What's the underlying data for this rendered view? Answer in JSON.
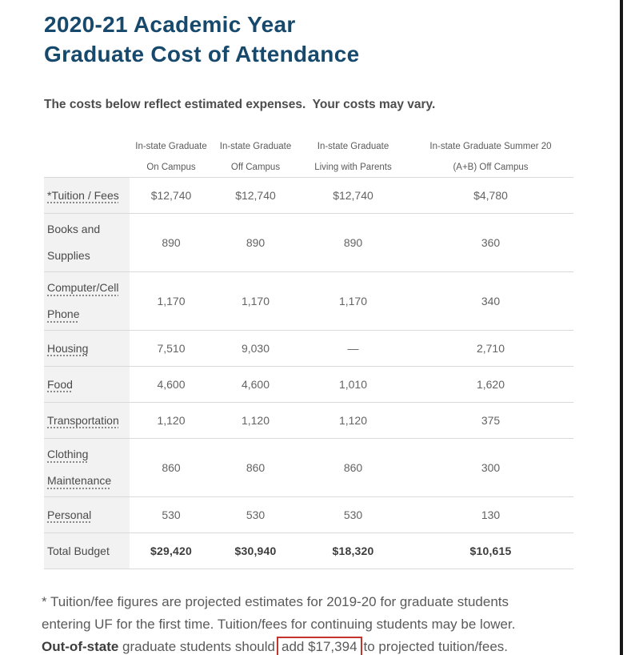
{
  "page": {
    "title_line1": "2020-21 Academic Year",
    "title_line2": "Graduate Cost of Attendance",
    "subtitle": "The costs below reflect estimated expenses.  Your costs may vary."
  },
  "table": {
    "columns": [
      {
        "line1": "In-state Graduate",
        "line2": "On Campus"
      },
      {
        "line1": "In-state Graduate",
        "line2": "Off Campus"
      },
      {
        "line1": "In-state Graduate",
        "line2": "Living with Parents"
      },
      {
        "line1": "In-state Graduate Summer 20",
        "line2": "(A+B) Off Campus"
      }
    ],
    "rows": [
      {
        "label": "*Tuition / Fees",
        "values": [
          "$12,740",
          "$12,740",
          "$12,740",
          "$4,780"
        ]
      },
      {
        "label": "Books and Supplies",
        "values": [
          "890",
          "890",
          "890",
          "360"
        ]
      },
      {
        "label": "Computer/Cell Phone",
        "values": [
          "1,170",
          "1,170",
          "1,170",
          "340"
        ]
      },
      {
        "label": "Housing",
        "values": [
          "7,510",
          "9,030",
          "—",
          "2,710"
        ]
      },
      {
        "label": "Food",
        "values": [
          "4,600",
          "4,600",
          "1,010",
          "1,620"
        ]
      },
      {
        "label": "Transportation",
        "values": [
          "1,120",
          "1,120",
          "1,120",
          "375"
        ]
      },
      {
        "label": "Clothing Maintenance",
        "values": [
          "860",
          "860",
          "860",
          "300"
        ]
      },
      {
        "label": "Personal",
        "values": [
          "530",
          "530",
          "530",
          "130"
        ]
      },
      {
        "label": "Total Budget",
        "values": [
          "$29,420",
          "$30,940",
          "$18,320",
          "$10,615"
        ]
      }
    ]
  },
  "footnote": {
    "line1": "* Tuition/fee figures are projected estimates for 2019-20 for graduate students",
    "line2": "entering UF for the first time. Tuition/fees for continuing students may be lower.",
    "line3_bold": "Out-of-state",
    "line3_mid": " graduate students should",
    "line3_boxed": "add $17,394",
    "line3_end": "to projected tuition/fees."
  },
  "colors": {
    "title_blue": "#17496d",
    "highlight_red": "#c2342c",
    "label_cell_bg": "#f2f2f2",
    "divider_gray": "#d9d9d9"
  }
}
